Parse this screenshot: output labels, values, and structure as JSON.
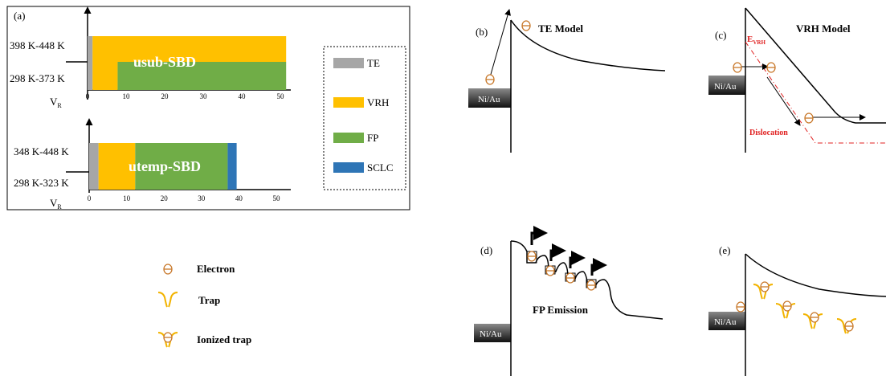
{
  "panel_a": {
    "label": "(a)",
    "top": {
      "row_upper": "398 K-448 K",
      "row_lower": "298 K-373 K",
      "vr_label": "V",
      "vr_sub": "R",
      "name": "usub-SBD"
    },
    "bottom": {
      "row_upper": "348 K-448 K",
      "row_lower": "298 K-323 K",
      "vr_label": "V",
      "vr_sub": "R",
      "name": "utemp-SBD"
    },
    "legend": [
      {
        "label": "TE",
        "color": "#a6a6a6"
      },
      {
        "label": "VRH",
        "color": "#ffc000"
      },
      {
        "label": "FP",
        "color": "#70ad47"
      },
      {
        "label": "SCLC",
        "color": "#2e75b6"
      }
    ]
  },
  "chart_data": [
    {
      "type": "bar",
      "title": "usub-SBD",
      "x_ticks": [
        "0",
        "10",
        "20",
        "30",
        "40",
        "50"
      ],
      "xlim": [
        0,
        50
      ],
      "rows": [
        {
          "name": "398 K-448 K",
          "segments": [
            {
              "mechanism": "TE",
              "from": 0,
              "to": 1.3
            },
            {
              "mechanism": "VRH",
              "from": 1.3,
              "to": 51.5
            }
          ]
        },
        {
          "name": "298 K-373 K",
          "segments": [
            {
              "mechanism": "TE",
              "from": 0,
              "to": 1.3
            },
            {
              "mechanism": "VRH",
              "from": 1.3,
              "to": 7.8
            },
            {
              "mechanism": "FP",
              "from": 7.8,
              "to": 51.5
            }
          ]
        }
      ]
    },
    {
      "type": "bar",
      "title": "utemp-SBD",
      "x_ticks": [
        "0",
        "10",
        "20",
        "30",
        "40",
        "50"
      ],
      "xlim": [
        0,
        50
      ],
      "rows": [
        {
          "name": "348 K-448 K",
          "segments": [
            {
              "mechanism": "TE",
              "from": 0,
              "to": 2.5
            },
            {
              "mechanism": "VRH",
              "from": 2.5,
              "to": 12.3
            },
            {
              "mechanism": "FP",
              "from": 12.3,
              "to": 37
            },
            {
              "mechanism": "SCLC",
              "from": 37,
              "to": 39.4
            }
          ]
        },
        {
          "name": "298 K-323 K",
          "segments": [
            {
              "mechanism": "TE",
              "from": 0,
              "to": 2.5
            },
            {
              "mechanism": "VRH",
              "from": 2.5,
              "to": 12.3
            },
            {
              "mechanism": "FP",
              "from": 12.3,
              "to": 37
            },
            {
              "mechanism": "SCLC",
              "from": 37,
              "to": 39.4
            }
          ]
        }
      ]
    }
  ],
  "key": {
    "electron": "Electron",
    "trap": "Trap",
    "ionized_trap": "Ionized trap"
  },
  "panel_b": {
    "label": "(b)",
    "title": "TE Model",
    "metal": "Ni/Au"
  },
  "panel_c": {
    "label": "(c)",
    "title": "VRH Model",
    "metal": "Ni/Au",
    "e_label": "E",
    "e_sub": "VRH",
    "dislocation": "Dislocation"
  },
  "panel_d": {
    "label": "(d)",
    "title": "FP Emission",
    "metal": "Ni/Au"
  },
  "panel_e": {
    "label": "(e)",
    "metal": "Ni/Au"
  },
  "electron_symbol": "ϴ"
}
